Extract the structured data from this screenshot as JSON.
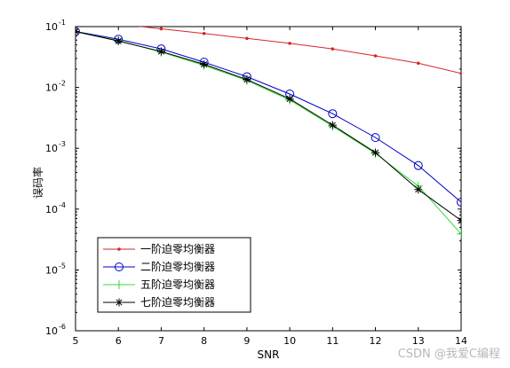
{
  "chart_data": {
    "type": "line",
    "xlabel": "SNR",
    "ylabel": "误码率",
    "xlim": [
      5,
      14
    ],
    "ylim": [
      1e-06,
      0.1
    ],
    "yscale": "log",
    "x_ticks": [
      "5",
      "6",
      "7",
      "8",
      "9",
      "10",
      "11",
      "12",
      "13",
      "14"
    ],
    "y_ticks": [
      {
        "value": 0.1,
        "base": "10",
        "exp": "-1"
      },
      {
        "value": 0.01,
        "base": "10",
        "exp": "-2"
      },
      {
        "value": 0.001,
        "base": "10",
        "exp": "-3"
      },
      {
        "value": 0.0001,
        "base": "10",
        "exp": "-4"
      },
      {
        "value": 1e-05,
        "base": "10",
        "exp": "-5"
      },
      {
        "value": 1e-06,
        "base": "10",
        "exp": "-6"
      }
    ],
    "grid": false,
    "legend_position": "bottom-left",
    "series": [
      {
        "name": "一阶迫零均衡器",
        "color": "#d62728",
        "marker": "dot",
        "x": [
          5,
          6,
          7,
          8,
          9,
          10,
          11,
          12,
          13,
          14
        ],
        "y": [
          0.13,
          0.11,
          0.092,
          0.077,
          0.064,
          0.053,
          0.043,
          0.033,
          0.025,
          0.017
        ]
      },
      {
        "name": "二阶迫零均衡器",
        "color": "#0000cc",
        "marker": "circle",
        "x": [
          5,
          6,
          7,
          8,
          9,
          10,
          11,
          12,
          13,
          14
        ],
        "y": [
          0.083,
          0.062,
          0.043,
          0.026,
          0.015,
          0.0078,
          0.0037,
          0.0015,
          0.00052,
          0.00013
        ]
      },
      {
        "name": "五阶迫零均衡器",
        "color": "#33dd33",
        "marker": "plus",
        "x": [
          5,
          6,
          7,
          8,
          9,
          10,
          11,
          12,
          13,
          14
        ],
        "y": [
          0.082,
          0.059,
          0.038,
          0.023,
          0.013,
          0.0062,
          0.0023,
          0.00082,
          0.00024,
          3.9e-05
        ]
      },
      {
        "name": "七阶迫零均衡器",
        "color": "#000000",
        "marker": "star",
        "x": [
          5,
          6,
          7,
          8,
          9,
          10,
          11,
          12,
          13,
          14
        ],
        "y": [
          0.083,
          0.058,
          0.039,
          0.024,
          0.0135,
          0.0065,
          0.0024,
          0.00085,
          0.00021,
          6.5e-05
        ]
      }
    ]
  },
  "watermark": "CSDN @我爱C编程"
}
